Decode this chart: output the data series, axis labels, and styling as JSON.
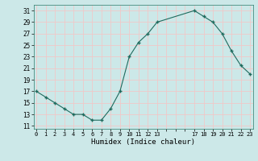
{
  "x": [
    0,
    1,
    2,
    3,
    4,
    5,
    6,
    7,
    8,
    9,
    10,
    11,
    12,
    13,
    17,
    18,
    19,
    20,
    21,
    22,
    23
  ],
  "y": [
    17,
    16,
    15,
    14,
    13,
    13,
    12,
    12,
    14,
    17,
    23,
    25.5,
    27,
    29,
    31,
    30,
    29,
    27,
    24,
    21.5,
    20
  ],
  "line_color": "#1f6b5e",
  "marker_color": "#1f6b5e",
  "bg_color": "#cce8e8",
  "grid_color": "#f0c8c8",
  "xlabel": "Humidex (Indice chaleur)",
  "xlabel_fontsize": 6.5,
  "ytick_labels": [
    "11",
    "13",
    "15",
    "17",
    "19",
    "21",
    "23",
    "25",
    "27",
    "29",
    "31"
  ],
  "ytick_vals": [
    11,
    13,
    15,
    17,
    19,
    21,
    23,
    25,
    27,
    29,
    31
  ],
  "xtick_labels": [
    "0",
    "1",
    "2",
    "3",
    "4",
    "5",
    "6",
    "7",
    "8",
    "9",
    "10",
    "11",
    "12",
    "13",
    "",
    "",
    "",
    "17",
    "18",
    "19",
    "20",
    "21",
    "22",
    "23"
  ],
  "xtick_vals": [
    0,
    1,
    2,
    3,
    4,
    5,
    6,
    7,
    8,
    9,
    10,
    11,
    12,
    13,
    14,
    15,
    16,
    17,
    18,
    19,
    20,
    21,
    22,
    23
  ],
  "xlim": [
    -0.3,
    23.3
  ],
  "ylim": [
    10.5,
    32.0
  ]
}
